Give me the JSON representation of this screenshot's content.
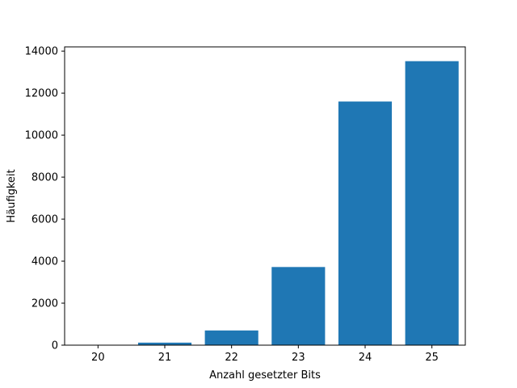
{
  "chart_data": {
    "type": "bar",
    "categories": [
      "20",
      "21",
      "22",
      "23",
      "24",
      "25"
    ],
    "values": [
      10,
      120,
      700,
      3720,
      11600,
      13520
    ],
    "title": "",
    "xlabel": "Anzahl gesetzter Bits",
    "ylabel": "Häufigkeit",
    "ylim": [
      0,
      14200
    ],
    "yticks": [
      0,
      2000,
      4000,
      6000,
      8000,
      10000,
      12000,
      14000
    ],
    "ytick_labels": [
      "0",
      "2000",
      "4000",
      "6000",
      "8000",
      "10000",
      "12000",
      "14000"
    ],
    "bar_color": "#1f77b4",
    "grid": false
  }
}
